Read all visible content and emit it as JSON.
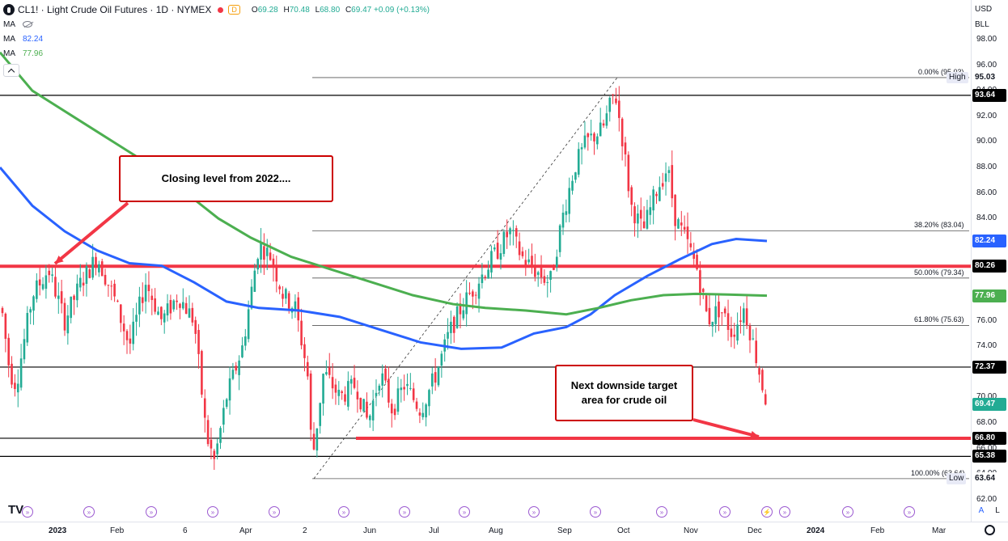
{
  "header": {
    "symbol_title": "CL1! · Light Crude Oil Futures · 1D · NYMEX",
    "d_badge": "D",
    "ohlc": {
      "o_label": "O",
      "o": "69.28",
      "h_label": "H",
      "h": "70.48",
      "l_label": "L",
      "l": "68.80",
      "c_label": "C",
      "c": "69.47",
      "change": "+0.09 (+0.13%)"
    },
    "ma_rows": [
      {
        "label": "MA",
        "value": ""
      },
      {
        "label": "MA",
        "value": "82.24",
        "color": "#2962ff"
      },
      {
        "label": "MA",
        "value": "77.96",
        "color": "#4caf50"
      }
    ]
  },
  "annotations": {
    "callout_2022": "Closing level from 2022....",
    "callout_target_line1": "Next downside target",
    "callout_target_line2": "area for crude oil"
  },
  "fib_labels": [
    {
      "text": "0.00% (95.03)",
      "price": 95.03
    },
    {
      "text": "38.20% (83.04)",
      "price": 83.04
    },
    {
      "text": "50.00% (79.34)",
      "price": 79.34
    },
    {
      "text": "61.80% (75.63)",
      "price": 75.63
    },
    {
      "text": "100.00% (63.64)",
      "price": 63.64
    }
  ],
  "price_axis": {
    "currency": "USD",
    "unit": "BLL",
    "ticks": [
      "98.00",
      "96.00",
      "94.00",
      "92.00",
      "90.00",
      "88.00",
      "86.00",
      "84.00",
      "82.00",
      "80.00",
      "78.00",
      "76.00",
      "74.00",
      "72.00",
      "70.00",
      "68.00",
      "66.00",
      "64.00",
      "62.00"
    ],
    "tags": [
      {
        "text": "95.03",
        "price": 95.03,
        "bg": "#ffffff",
        "fg": "#131722"
      },
      {
        "text": "93.64",
        "price": 93.64,
        "bg": "#000000",
        "fg": "#ffffff"
      },
      {
        "text": "82.24",
        "price": 82.24,
        "bg": "#2962ff",
        "fg": "#ffffff"
      },
      {
        "text": "80.26",
        "price": 80.26,
        "bg": "#000000",
        "fg": "#ffffff"
      },
      {
        "text": "77.96",
        "price": 77.96,
        "bg": "#4caf50",
        "fg": "#ffffff"
      },
      {
        "text": "72.37",
        "price": 72.37,
        "bg": "#000000",
        "fg": "#ffffff"
      },
      {
        "text": "69.47",
        "price": 69.47,
        "bg": "#22ab94",
        "fg": "#ffffff"
      },
      {
        "text": "66.80",
        "price": 66.8,
        "bg": "#000000",
        "fg": "#ffffff"
      },
      {
        "text": "65.38",
        "price": 65.38,
        "bg": "#000000",
        "fg": "#ffffff"
      },
      {
        "text": "63.64",
        "price": 63.64,
        "bg": "#ffffff",
        "fg": "#131722"
      }
    ],
    "high_label": "High",
    "low_label": "Low",
    "auto_btn": "A",
    "log_btn": "L"
  },
  "time_axis": {
    "labels": [
      {
        "text": "2023",
        "bold": true
      },
      {
        "text": "Feb"
      },
      {
        "text": "6"
      },
      {
        "text": "Apr"
      },
      {
        "text": "2"
      },
      {
        "text": "Jun"
      },
      {
        "text": "Jul"
      },
      {
        "text": "Aug"
      },
      {
        "text": "Sep"
      },
      {
        "text": "Oct"
      },
      {
        "text": "Nov"
      },
      {
        "text": "Dec"
      },
      {
        "text": "2024",
        "bold": true
      },
      {
        "text": "Feb"
      },
      {
        "text": "Mar"
      }
    ]
  },
  "horizontal_levels": [
    93.64,
    80.26,
    72.37,
    66.8,
    65.38
  ],
  "colors": {
    "up": "#22ab94",
    "down": "#f23645",
    "ma_blue": "#2962ff",
    "ma_green": "#4caf50",
    "red_annot": "#f23645",
    "event": "#9b59d0"
  },
  "logo_text": "TV"
}
